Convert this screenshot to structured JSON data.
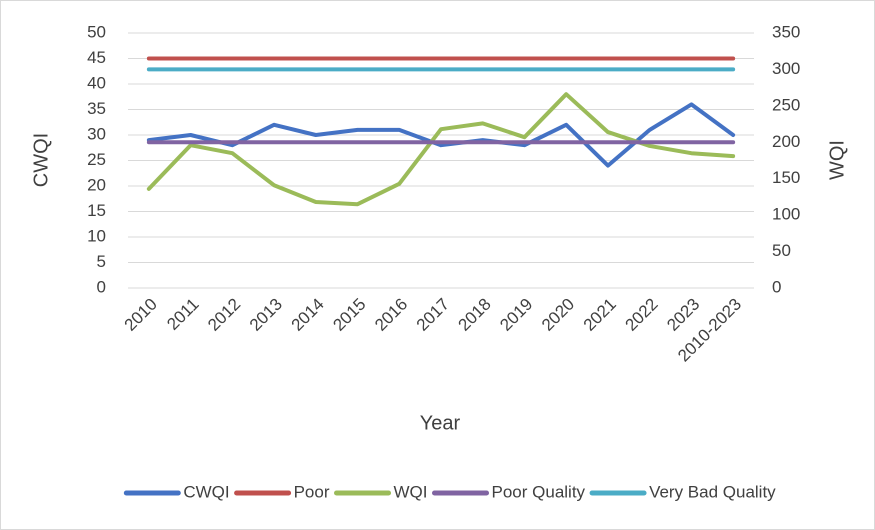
{
  "chart_data": {
    "type": "line",
    "categories": [
      "2010",
      "2011",
      "2012",
      "2013",
      "2014",
      "2015",
      "2016",
      "2017",
      "2018",
      "2019",
      "2020",
      "2021",
      "2022",
      "2023",
      "2010-2023"
    ],
    "series": [
      {
        "name": "CWQI",
        "color": "#4472c4",
        "values": [
          29,
          30,
          28,
          32,
          30,
          31,
          31,
          28,
          29,
          28,
          32,
          24,
          31,
          36,
          30
        ]
      },
      {
        "name": "Poor",
        "color": "#c0504d",
        "values": [
          45,
          45,
          45,
          45,
          45,
          45,
          45,
          45,
          45,
          45,
          45,
          45,
          45,
          45,
          45
        ]
      },
      {
        "name": "WQI",
        "color": "#9bbb59",
        "axis": "y2",
        "values": [
          136,
          196,
          185,
          141,
          118,
          115,
          143,
          218,
          226,
          207,
          266,
          214,
          195,
          185,
          181
        ]
      },
      {
        "name": "Poor Quality",
        "color": "#8064a2",
        "axis": "y2",
        "values": [
          200,
          200,
          200,
          200,
          200,
          200,
          200,
          200,
          200,
          200,
          200,
          200,
          200,
          200,
          200
        ]
      },
      {
        "name": "Very Bad Quality",
        "color": "#4bacc6",
        "axis": "y2",
        "values": [
          300,
          300,
          300,
          300,
          300,
          300,
          300,
          300,
          300,
          300,
          300,
          300,
          300,
          300,
          300
        ]
      }
    ],
    "ylabel": "CWQI",
    "y2label": "WQI",
    "xlabel": "Year",
    "ylim": [
      0,
      50
    ],
    "yticks": [
      0,
      5,
      10,
      15,
      20,
      25,
      30,
      35,
      40,
      45,
      50
    ],
    "y2lim": [
      0,
      350
    ],
    "y2ticks": [
      0,
      50,
      100,
      150,
      200,
      250,
      300,
      350
    ],
    "grid": true,
    "legend": "bottom"
  }
}
